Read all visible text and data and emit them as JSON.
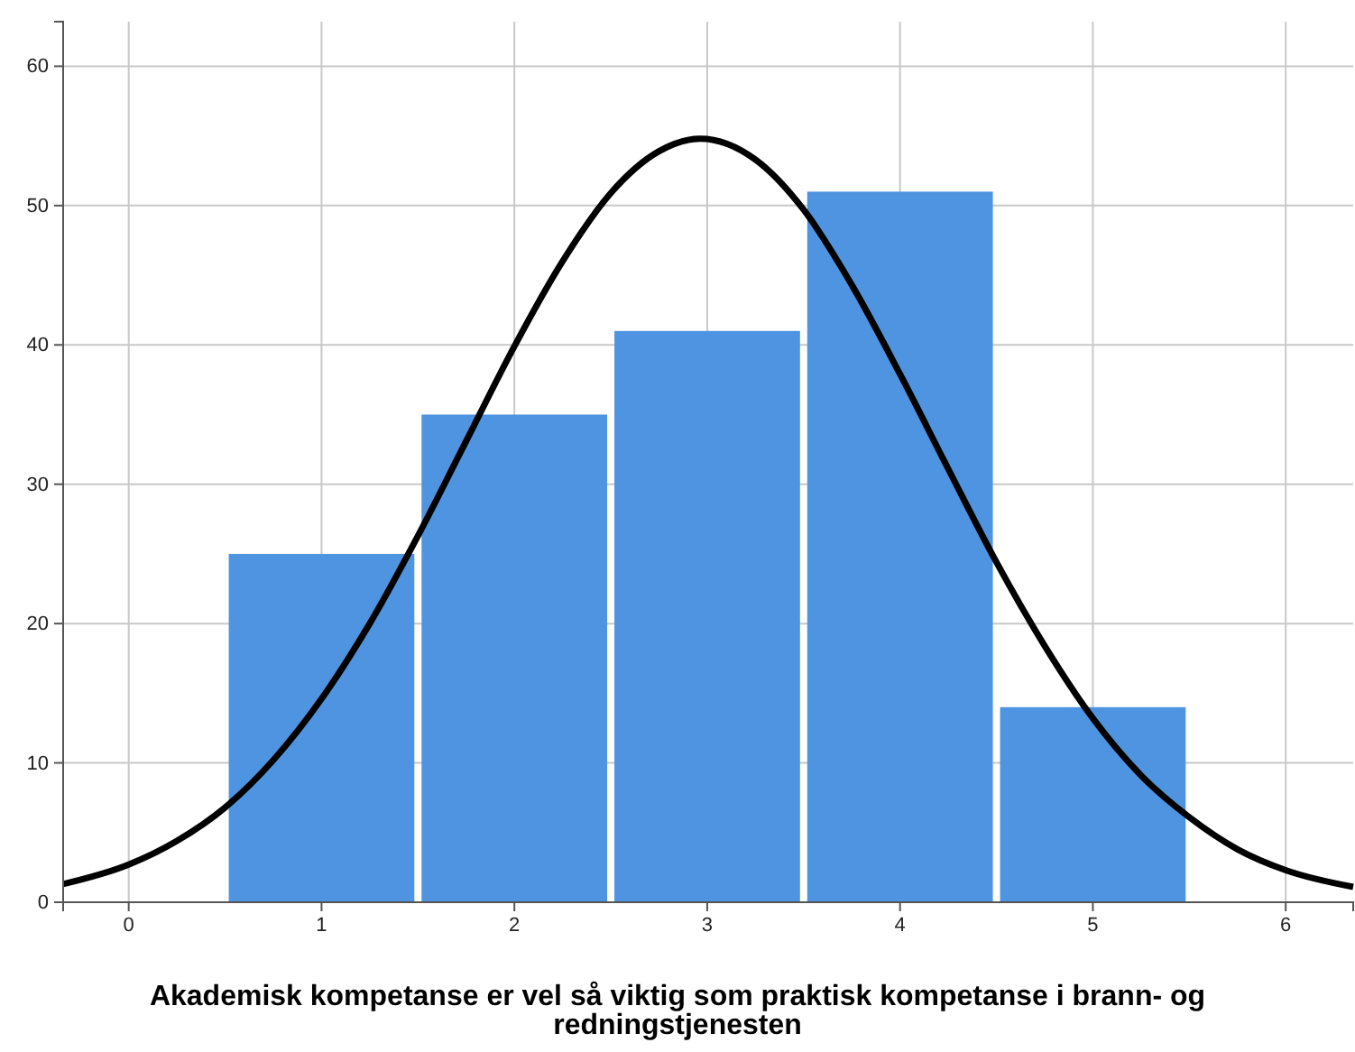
{
  "chart_data": {
    "type": "histogram",
    "xlabel": "Akademisk kompetanse er vel så viktig som praktisk kompetanse i brann- og redningstjenesten",
    "bins": [
      0.5,
      1.5,
      2.5,
      3.5,
      4.5,
      5.5
    ],
    "values": [
      25,
      35,
      41,
      51,
      14
    ],
    "color": "#4f94e0",
    "series": [
      {
        "type": "line",
        "color": "#000000",
        "x": [
          -0.34,
          0,
          0.25,
          0.5,
          0.75,
          1,
          1.25,
          1.5,
          1.75,
          2,
          2.25,
          2.5,
          2.75,
          2.964,
          3.25,
          3.5,
          3.75,
          4,
          4.25,
          4.5,
          4.75,
          5,
          5.25,
          5.5,
          5.75,
          6,
          6.35
        ],
        "values": [
          1.3,
          2.7,
          4.4,
          6.8,
          10.2,
          14.6,
          20.0,
          26.3,
          33.1,
          39.9,
          46.0,
          50.9,
          53.9,
          54.8,
          53.3,
          49.7,
          44.3,
          37.9,
          31.1,
          24.4,
          18.4,
          13.2,
          9.1,
          6.1,
          3.8,
          2.3,
          1.1
        ]
      }
    ],
    "xlim": [
      -0.34,
      6.35
    ],
    "xticks": [
      0,
      1,
      2,
      3,
      4,
      5,
      6
    ],
    "ylim": [
      0,
      63.2
    ],
    "yticks": [
      0,
      10,
      20,
      30,
      40,
      50,
      60
    ],
    "grid": true,
    "line_style": "solid",
    "marker": "none"
  }
}
